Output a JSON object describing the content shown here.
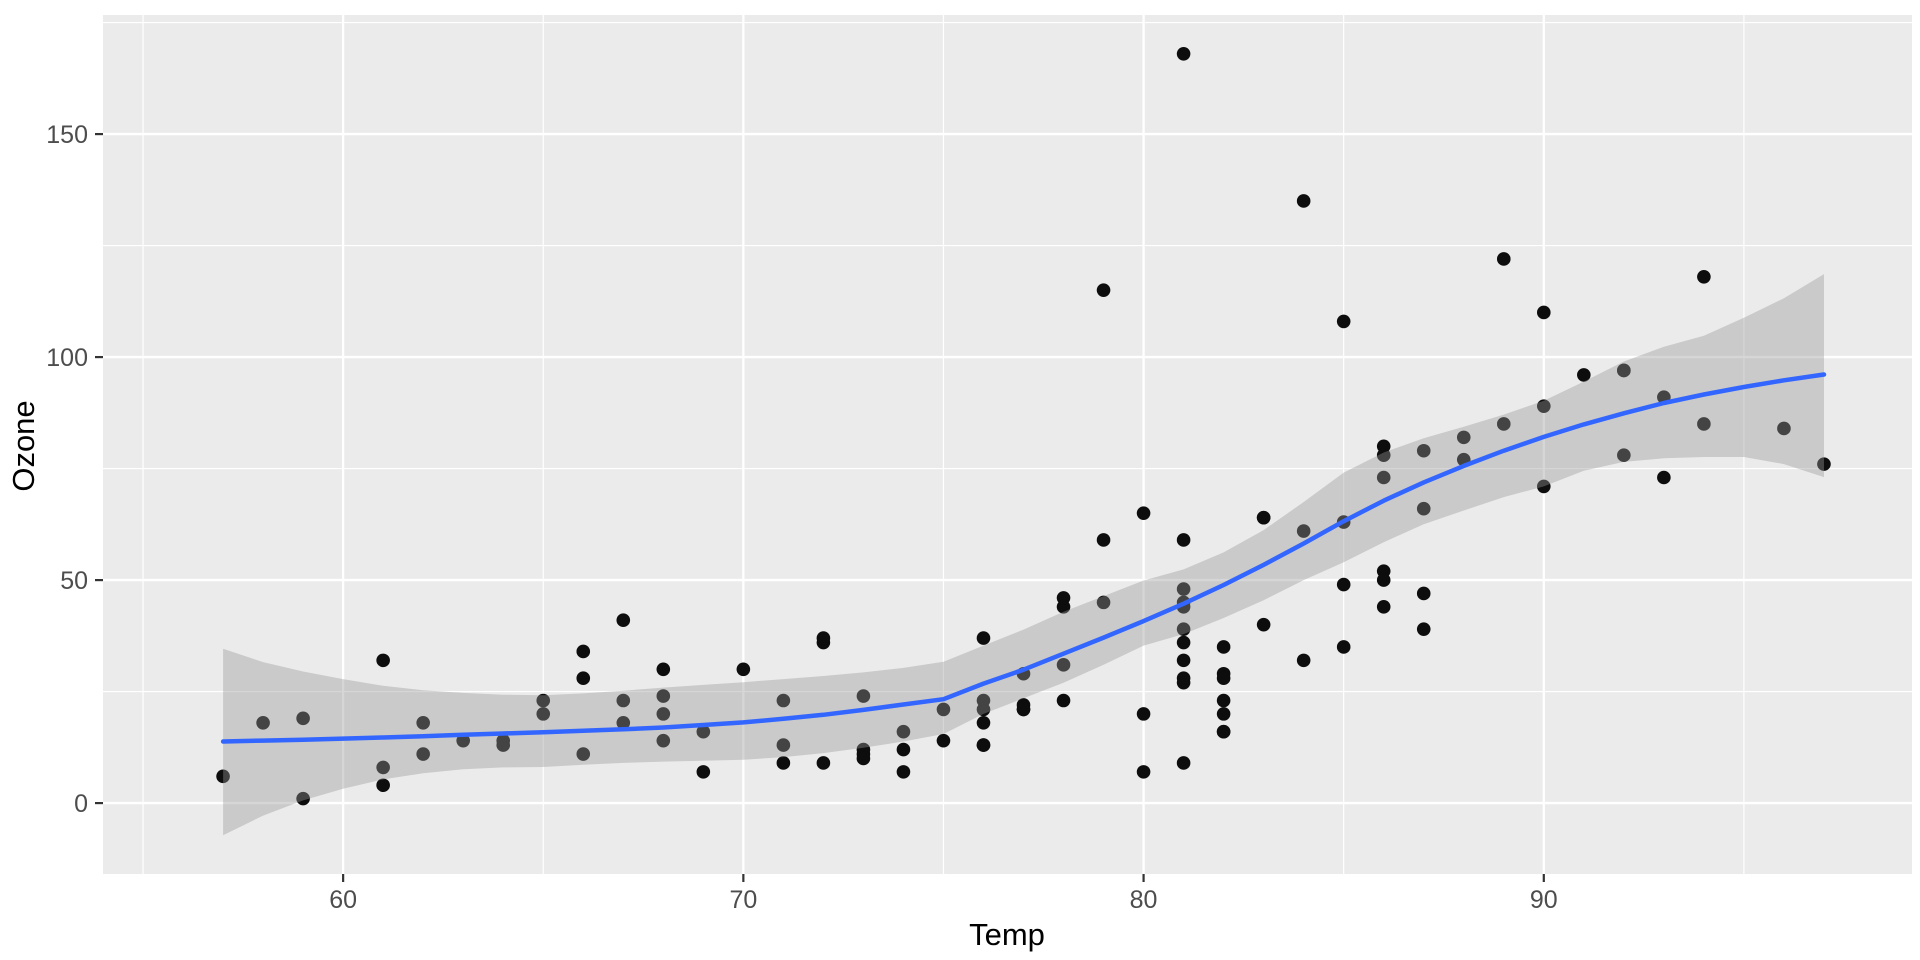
{
  "chart_data": {
    "type": "scatter",
    "title": "",
    "xlabel": "Temp",
    "ylabel": "Ozone",
    "xlim": [
      54.0,
      99.2
    ],
    "ylim": [
      -15.9,
      176.7
    ],
    "x_ticks": [
      60,
      70,
      80,
      90
    ],
    "x_minor_ticks": [
      55,
      65,
      75,
      85,
      95
    ],
    "y_ticks": [
      0,
      50,
      100,
      150
    ],
    "y_minor_ticks": [
      25,
      75,
      125,
      175
    ],
    "grid": "on",
    "legend": "none",
    "points_xy_temp_ozone": [
      [
        67,
        41
      ],
      [
        72,
        36
      ],
      [
        74,
        12
      ],
      [
        62,
        18
      ],
      [
        66,
        28
      ],
      [
        65,
        23
      ],
      [
        59,
        19
      ],
      [
        61,
        8
      ],
      [
        74,
        7
      ],
      [
        69,
        16
      ],
      [
        66,
        11
      ],
      [
        68,
        14
      ],
      [
        58,
        18
      ],
      [
        64,
        14
      ],
      [
        66,
        34
      ],
      [
        57,
        6
      ],
      [
        68,
        30
      ],
      [
        62,
        11
      ],
      [
        59,
        1
      ],
      [
        73,
        11
      ],
      [
        61,
        4
      ],
      [
        61,
        32
      ],
      [
        67,
        23
      ],
      [
        81,
        45
      ],
      [
        79,
        115
      ],
      [
        76,
        37
      ],
      [
        82,
        29
      ],
      [
        90,
        71
      ],
      [
        87,
        39
      ],
      [
        82,
        23
      ],
      [
        77,
        21
      ],
      [
        72,
        37
      ],
      [
        65,
        20
      ],
      [
        73,
        12
      ],
      [
        76,
        13
      ],
      [
        84,
        135
      ],
      [
        85,
        49
      ],
      [
        81,
        32
      ],
      [
        83,
        64
      ],
      [
        83,
        40
      ],
      [
        88,
        77
      ],
      [
        92,
        97
      ],
      [
        92,
        97
      ],
      [
        89,
        85
      ],
      [
        73,
        10
      ],
      [
        81,
        27
      ],
      [
        80,
        7
      ],
      [
        81,
        48
      ],
      [
        82,
        35
      ],
      [
        84,
        61
      ],
      [
        87,
        79
      ],
      [
        85,
        63
      ],
      [
        74,
        16
      ],
      [
        86,
        80
      ],
      [
        85,
        108
      ],
      [
        82,
        20
      ],
      [
        86,
        52
      ],
      [
        88,
        82
      ],
      [
        86,
        50
      ],
      [
        83,
        64
      ],
      [
        81,
        59
      ],
      [
        81,
        39
      ],
      [
        81,
        9
      ],
      [
        82,
        16
      ],
      [
        86,
        78
      ],
      [
        85,
        35
      ],
      [
        87,
        66
      ],
      [
        89,
        122
      ],
      [
        90,
        89
      ],
      [
        90,
        110
      ],
      [
        86,
        44
      ],
      [
        82,
        28
      ],
      [
        80,
        65
      ],
      [
        77,
        22
      ],
      [
        79,
        59
      ],
      [
        76,
        23
      ],
      [
        78,
        31
      ],
      [
        78,
        44
      ],
      [
        77,
        21
      ],
      [
        72,
        9
      ],
      [
        79,
        45
      ],
      [
        81,
        168
      ],
      [
        86,
        73
      ],
      [
        97,
        76
      ],
      [
        94,
        118
      ],
      [
        96,
        84
      ],
      [
        94,
        85
      ],
      [
        91,
        96
      ],
      [
        92,
        78
      ],
      [
        93,
        73
      ],
      [
        93,
        91
      ],
      [
        87,
        47
      ],
      [
        84,
        32
      ],
      [
        80,
        20
      ],
      [
        78,
        23
      ],
      [
        75,
        21
      ],
      [
        73,
        24
      ],
      [
        81,
        44
      ],
      [
        76,
        21
      ],
      [
        81,
        28
      ],
      [
        71,
        9
      ],
      [
        71,
        13
      ],
      [
        78,
        46
      ],
      [
        67,
        18
      ],
      [
        76,
        13
      ],
      [
        68,
        24
      ],
      [
        82,
        16
      ],
      [
        64,
        13
      ],
      [
        71,
        23
      ],
      [
        81,
        36
      ],
      [
        69,
        7
      ],
      [
        63,
        14
      ],
      [
        70,
        30
      ],
      [
        75,
        14
      ],
      [
        76,
        18
      ],
      [
        68,
        20
      ],
      [
        77,
        29
      ]
    ],
    "smooth": {
      "method": "loess",
      "x": [
        57,
        58,
        59,
        60,
        61,
        62,
        63,
        64,
        65,
        66,
        67,
        68,
        69,
        70,
        71,
        72,
        73,
        74,
        75,
        76,
        77,
        78,
        79,
        80,
        81,
        82,
        83,
        84,
        85,
        86,
        87,
        88,
        89,
        90,
        91,
        92,
        93,
        94,
        95,
        96,
        97
      ],
      "y": [
        13.8,
        14.0,
        14.2,
        14.45,
        14.7,
        15.0,
        15.3,
        15.6,
        15.9,
        16.2,
        16.55,
        16.95,
        17.5,
        18.1,
        18.9,
        19.8,
        20.9,
        22.1,
        23.3,
        26.8,
        29.9,
        33.5,
        37.1,
        40.8,
        44.7,
        48.9,
        53.4,
        58.2,
        63.2,
        67.8,
        71.9,
        75.6,
        79.0,
        82.1,
        84.9,
        87.4,
        89.7,
        91.6,
        93.3,
        94.8,
        96.1
      ],
      "ymin": [
        -7.2,
        -2.8,
        0.6,
        3.2,
        5.3,
        6.7,
        7.6,
        8.0,
        8.1,
        8.6,
        9.0,
        9.3,
        9.5,
        9.7,
        10.3,
        11.2,
        12.4,
        13.8,
        15.5,
        20.0,
        23.5,
        27.0,
        31.0,
        35.3,
        37.9,
        41.5,
        45.5,
        50.0,
        54.0,
        58.5,
        62.5,
        65.6,
        68.6,
        71.0,
        74.5,
        76.5,
        77.3,
        77.6,
        77.6,
        76.0,
        73.1
      ],
      "ymax": [
        34.6,
        31.6,
        29.5,
        27.8,
        26.3,
        25.3,
        24.7,
        24.3,
        24.2,
        24.6,
        25.2,
        25.9,
        26.5,
        27.1,
        27.8,
        28.5,
        29.3,
        30.3,
        31.7,
        35.3,
        38.9,
        42.9,
        46.4,
        49.9,
        52.4,
        56.2,
        61.2,
        67.5,
        74.1,
        78.6,
        81.8,
        84.4,
        87.1,
        90.2,
        94.5,
        99.0,
        102.3,
        104.8,
        108.8,
        113.2,
        118.6
      ]
    },
    "colors": {
      "panel_bg": "#EBEBEB",
      "grid": "#FFFFFF",
      "point": "#0D0D0D",
      "smooth_line": "#3366FF",
      "ribbon_fill": "#999999",
      "ribbon_alpha": 0.4,
      "axis_text": "#4D4D4D",
      "axis_title": "#000000",
      "tick_mark": "#333333"
    }
  }
}
